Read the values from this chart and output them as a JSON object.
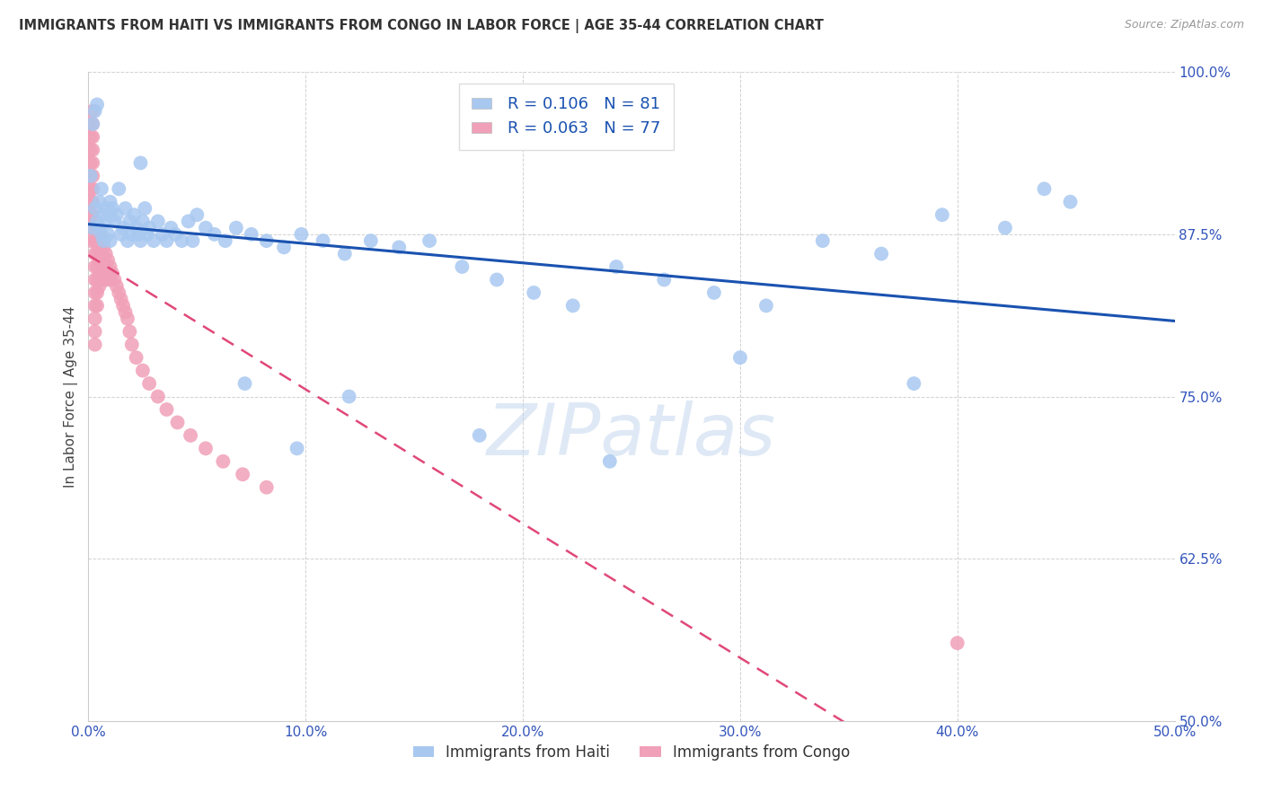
{
  "title": "IMMIGRANTS FROM HAITI VS IMMIGRANTS FROM CONGO IN LABOR FORCE | AGE 35-44 CORRELATION CHART",
  "source": "Source: ZipAtlas.com",
  "ylabel": "In Labor Force | Age 35-44",
  "xlim": [
    0.0,
    0.5
  ],
  "ylim": [
    0.5,
    1.0
  ],
  "xticks": [
    0.0,
    0.1,
    0.2,
    0.3,
    0.4,
    0.5
  ],
  "xticklabels": [
    "0.0%",
    "10.0%",
    "20.0%",
    "30.0%",
    "40.0%",
    "50.0%"
  ],
  "yticks": [
    0.5,
    0.625,
    0.75,
    0.875,
    1.0
  ],
  "yticklabels": [
    "50.0%",
    "62.5%",
    "75.0%",
    "87.5%",
    "100.0%"
  ],
  "haiti_R": 0.106,
  "haiti_N": 81,
  "congo_R": 0.063,
  "congo_N": 77,
  "haiti_color": "#a8c8f0",
  "congo_color": "#f0a0b8",
  "haiti_line_color": "#1a52b0",
  "congo_line_color": "#e04878",
  "watermark": "ZIPatlas",
  "haiti_x": [
    0.001,
    0.002,
    0.002,
    0.003,
    0.003,
    0.004,
    0.004,
    0.005,
    0.005,
    0.006,
    0.006,
    0.007,
    0.007,
    0.008,
    0.008,
    0.009,
    0.01,
    0.01,
    0.011,
    0.012,
    0.013,
    0.014,
    0.015,
    0.016,
    0.017,
    0.018,
    0.019,
    0.02,
    0.021,
    0.022,
    0.023,
    0.024,
    0.025,
    0.026,
    0.027,
    0.028,
    0.03,
    0.032,
    0.034,
    0.036,
    0.038,
    0.04,
    0.043,
    0.046,
    0.05,
    0.054,
    0.058,
    0.063,
    0.068,
    0.075,
    0.082,
    0.09,
    0.098,
    0.108,
    0.118,
    0.13,
    0.143,
    0.157,
    0.172,
    0.188,
    0.205,
    0.223,
    0.243,
    0.265,
    0.288,
    0.312,
    0.338,
    0.365,
    0.393,
    0.422,
    0.452,
    0.024,
    0.048,
    0.072,
    0.096,
    0.12,
    0.18,
    0.24,
    0.3,
    0.38,
    0.44
  ],
  "haiti_y": [
    0.92,
    0.88,
    0.96,
    0.895,
    0.97,
    0.885,
    0.975,
    0.9,
    0.88,
    0.91,
    0.875,
    0.89,
    0.87,
    0.885,
    0.895,
    0.875,
    0.9,
    0.87,
    0.895,
    0.885,
    0.89,
    0.91,
    0.875,
    0.88,
    0.895,
    0.87,
    0.885,
    0.875,
    0.89,
    0.88,
    0.875,
    0.87,
    0.885,
    0.895,
    0.875,
    0.88,
    0.87,
    0.885,
    0.875,
    0.87,
    0.88,
    0.875,
    0.87,
    0.885,
    0.89,
    0.88,
    0.875,
    0.87,
    0.88,
    0.875,
    0.87,
    0.865,
    0.875,
    0.87,
    0.86,
    0.87,
    0.865,
    0.87,
    0.85,
    0.84,
    0.83,
    0.82,
    0.85,
    0.84,
    0.83,
    0.82,
    0.87,
    0.86,
    0.89,
    0.88,
    0.9,
    0.93,
    0.87,
    0.76,
    0.71,
    0.75,
    0.72,
    0.7,
    0.78,
    0.76,
    0.91
  ],
  "congo_x": [
    0.001,
    0.001,
    0.001,
    0.001,
    0.001,
    0.001,
    0.001,
    0.001,
    0.001,
    0.001,
    0.002,
    0.002,
    0.002,
    0.002,
    0.002,
    0.002,
    0.002,
    0.002,
    0.002,
    0.002,
    0.003,
    0.003,
    0.003,
    0.003,
    0.003,
    0.003,
    0.003,
    0.003,
    0.003,
    0.004,
    0.004,
    0.004,
    0.004,
    0.004,
    0.004,
    0.004,
    0.005,
    0.005,
    0.005,
    0.005,
    0.005,
    0.006,
    0.006,
    0.006,
    0.006,
    0.007,
    0.007,
    0.007,
    0.008,
    0.008,
    0.008,
    0.009,
    0.009,
    0.01,
    0.01,
    0.011,
    0.012,
    0.013,
    0.014,
    0.015,
    0.016,
    0.017,
    0.018,
    0.019,
    0.02,
    0.022,
    0.025,
    0.028,
    0.032,
    0.036,
    0.041,
    0.047,
    0.054,
    0.062,
    0.071,
    0.082,
    0.4
  ],
  "congo_y": [
    0.96,
    0.95,
    0.94,
    0.93,
    0.92,
    0.91,
    0.9,
    0.89,
    0.88,
    0.87,
    0.97,
    0.96,
    0.95,
    0.94,
    0.93,
    0.92,
    0.91,
    0.9,
    0.89,
    0.88,
    0.87,
    0.86,
    0.85,
    0.84,
    0.83,
    0.82,
    0.81,
    0.8,
    0.79,
    0.88,
    0.87,
    0.86,
    0.85,
    0.84,
    0.83,
    0.82,
    0.875,
    0.865,
    0.855,
    0.845,
    0.835,
    0.87,
    0.86,
    0.85,
    0.84,
    0.865,
    0.855,
    0.845,
    0.86,
    0.85,
    0.84,
    0.855,
    0.845,
    0.85,
    0.84,
    0.845,
    0.84,
    0.835,
    0.83,
    0.825,
    0.82,
    0.815,
    0.81,
    0.8,
    0.79,
    0.78,
    0.77,
    0.76,
    0.75,
    0.74,
    0.73,
    0.72,
    0.71,
    0.7,
    0.69,
    0.68,
    0.56
  ]
}
